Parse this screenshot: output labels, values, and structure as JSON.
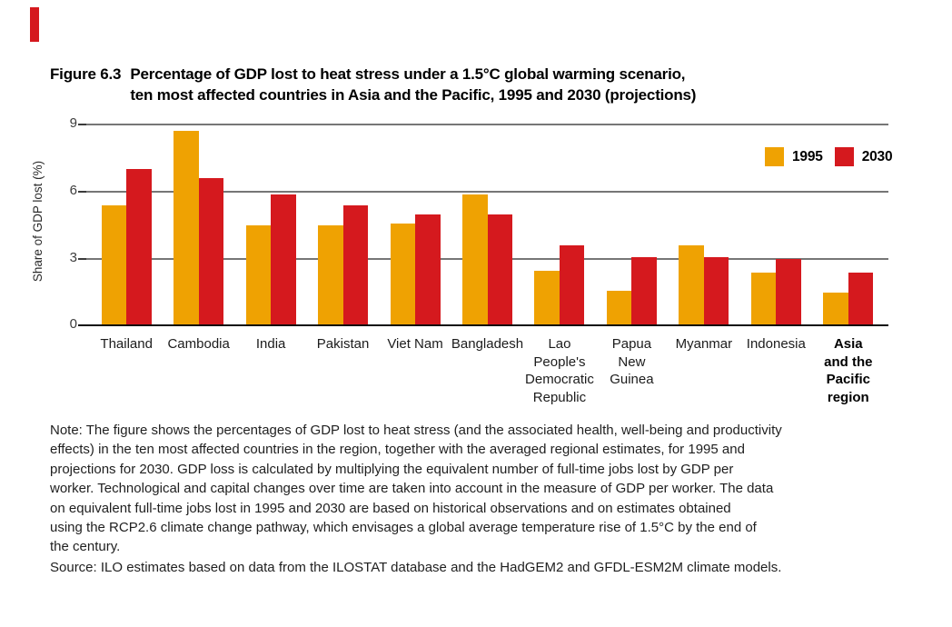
{
  "page": {
    "accent_color": "#d5191e",
    "background": "#ffffff"
  },
  "figure": {
    "label": "Figure 6.3",
    "title_lines": [
      "Percentage of GDP lost to heat stress under a 1.5°C global warming scenario,",
      "ten most affected countries in Asia and the Pacific, 1995 and 2030 (projections)"
    ]
  },
  "chart_data": {
    "type": "bar",
    "title": "Percentage of GDP lost to heat stress under a 1.5°C global warming scenario, ten most affected countries in Asia and the Pacific, 1995 and 2030 (projections)",
    "xlabel": "",
    "ylabel": "Share of GDP lost (%)",
    "ylim": [
      0,
      9
    ],
    "yticks": [
      0,
      3,
      6,
      9
    ],
    "grid": "horizontal",
    "legend_position": "top-right",
    "categories": [
      "Thailand",
      "Cambodia",
      "India",
      "Pakistan",
      "Viet Nam",
      "Bangladesh",
      "Lao People's Democratic Republic",
      "Papua New Guinea",
      "Myanmar",
      "Indonesia",
      "Asia and the Pacific region"
    ],
    "category_display": [
      "Thailand",
      "Cambodia",
      "India",
      "Pakistan",
      "Viet Nam",
      "Bangladesh",
      "Lao\nPeople's\nDemocratic\nRepublic",
      "Papua\nNew\nGuinea",
      "Myanmar",
      "Indonesia",
      "Asia\nand the\nPacific\nregion"
    ],
    "last_category_bold": true,
    "series": [
      {
        "name": "1995",
        "color": "#efa202",
        "values": [
          5.3,
          8.6,
          4.4,
          4.4,
          4.5,
          5.8,
          2.4,
          1.5,
          3.5,
          2.3,
          1.4
        ]
      },
      {
        "name": "2030",
        "color": "#d5191e",
        "values": [
          6.9,
          6.5,
          5.8,
          5.3,
          4.9,
          4.9,
          3.5,
          3.0,
          3.0,
          2.9,
          2.3
        ]
      }
    ]
  },
  "note_lines": [
    "Note: The figure shows the percentages of GDP lost to heat stress (and the associated health, well-being and productivity",
    "effects) in the ten most affected countries in the region, together with the averaged regional estimates, for 1995 and",
    "projections for 2030. GDP loss is calculated by multiplying the equivalent number of full-time jobs lost by GDP per",
    "worker. Technological and capital changes over time are taken into account in the measure of GDP per worker. The data",
    "on equivalent full-time jobs lost in 1995 and 2030 are based on historical observations and on estimates obtained",
    "using the RCP2.6 climate change pathway, which envisages a global average temperature rise of 1.5°C by the end of",
    "the century."
  ],
  "source": "Source: ILO estimates based on data from the ILOSTAT database and the HadGEM2 and GFDL-ESM2M climate models."
}
